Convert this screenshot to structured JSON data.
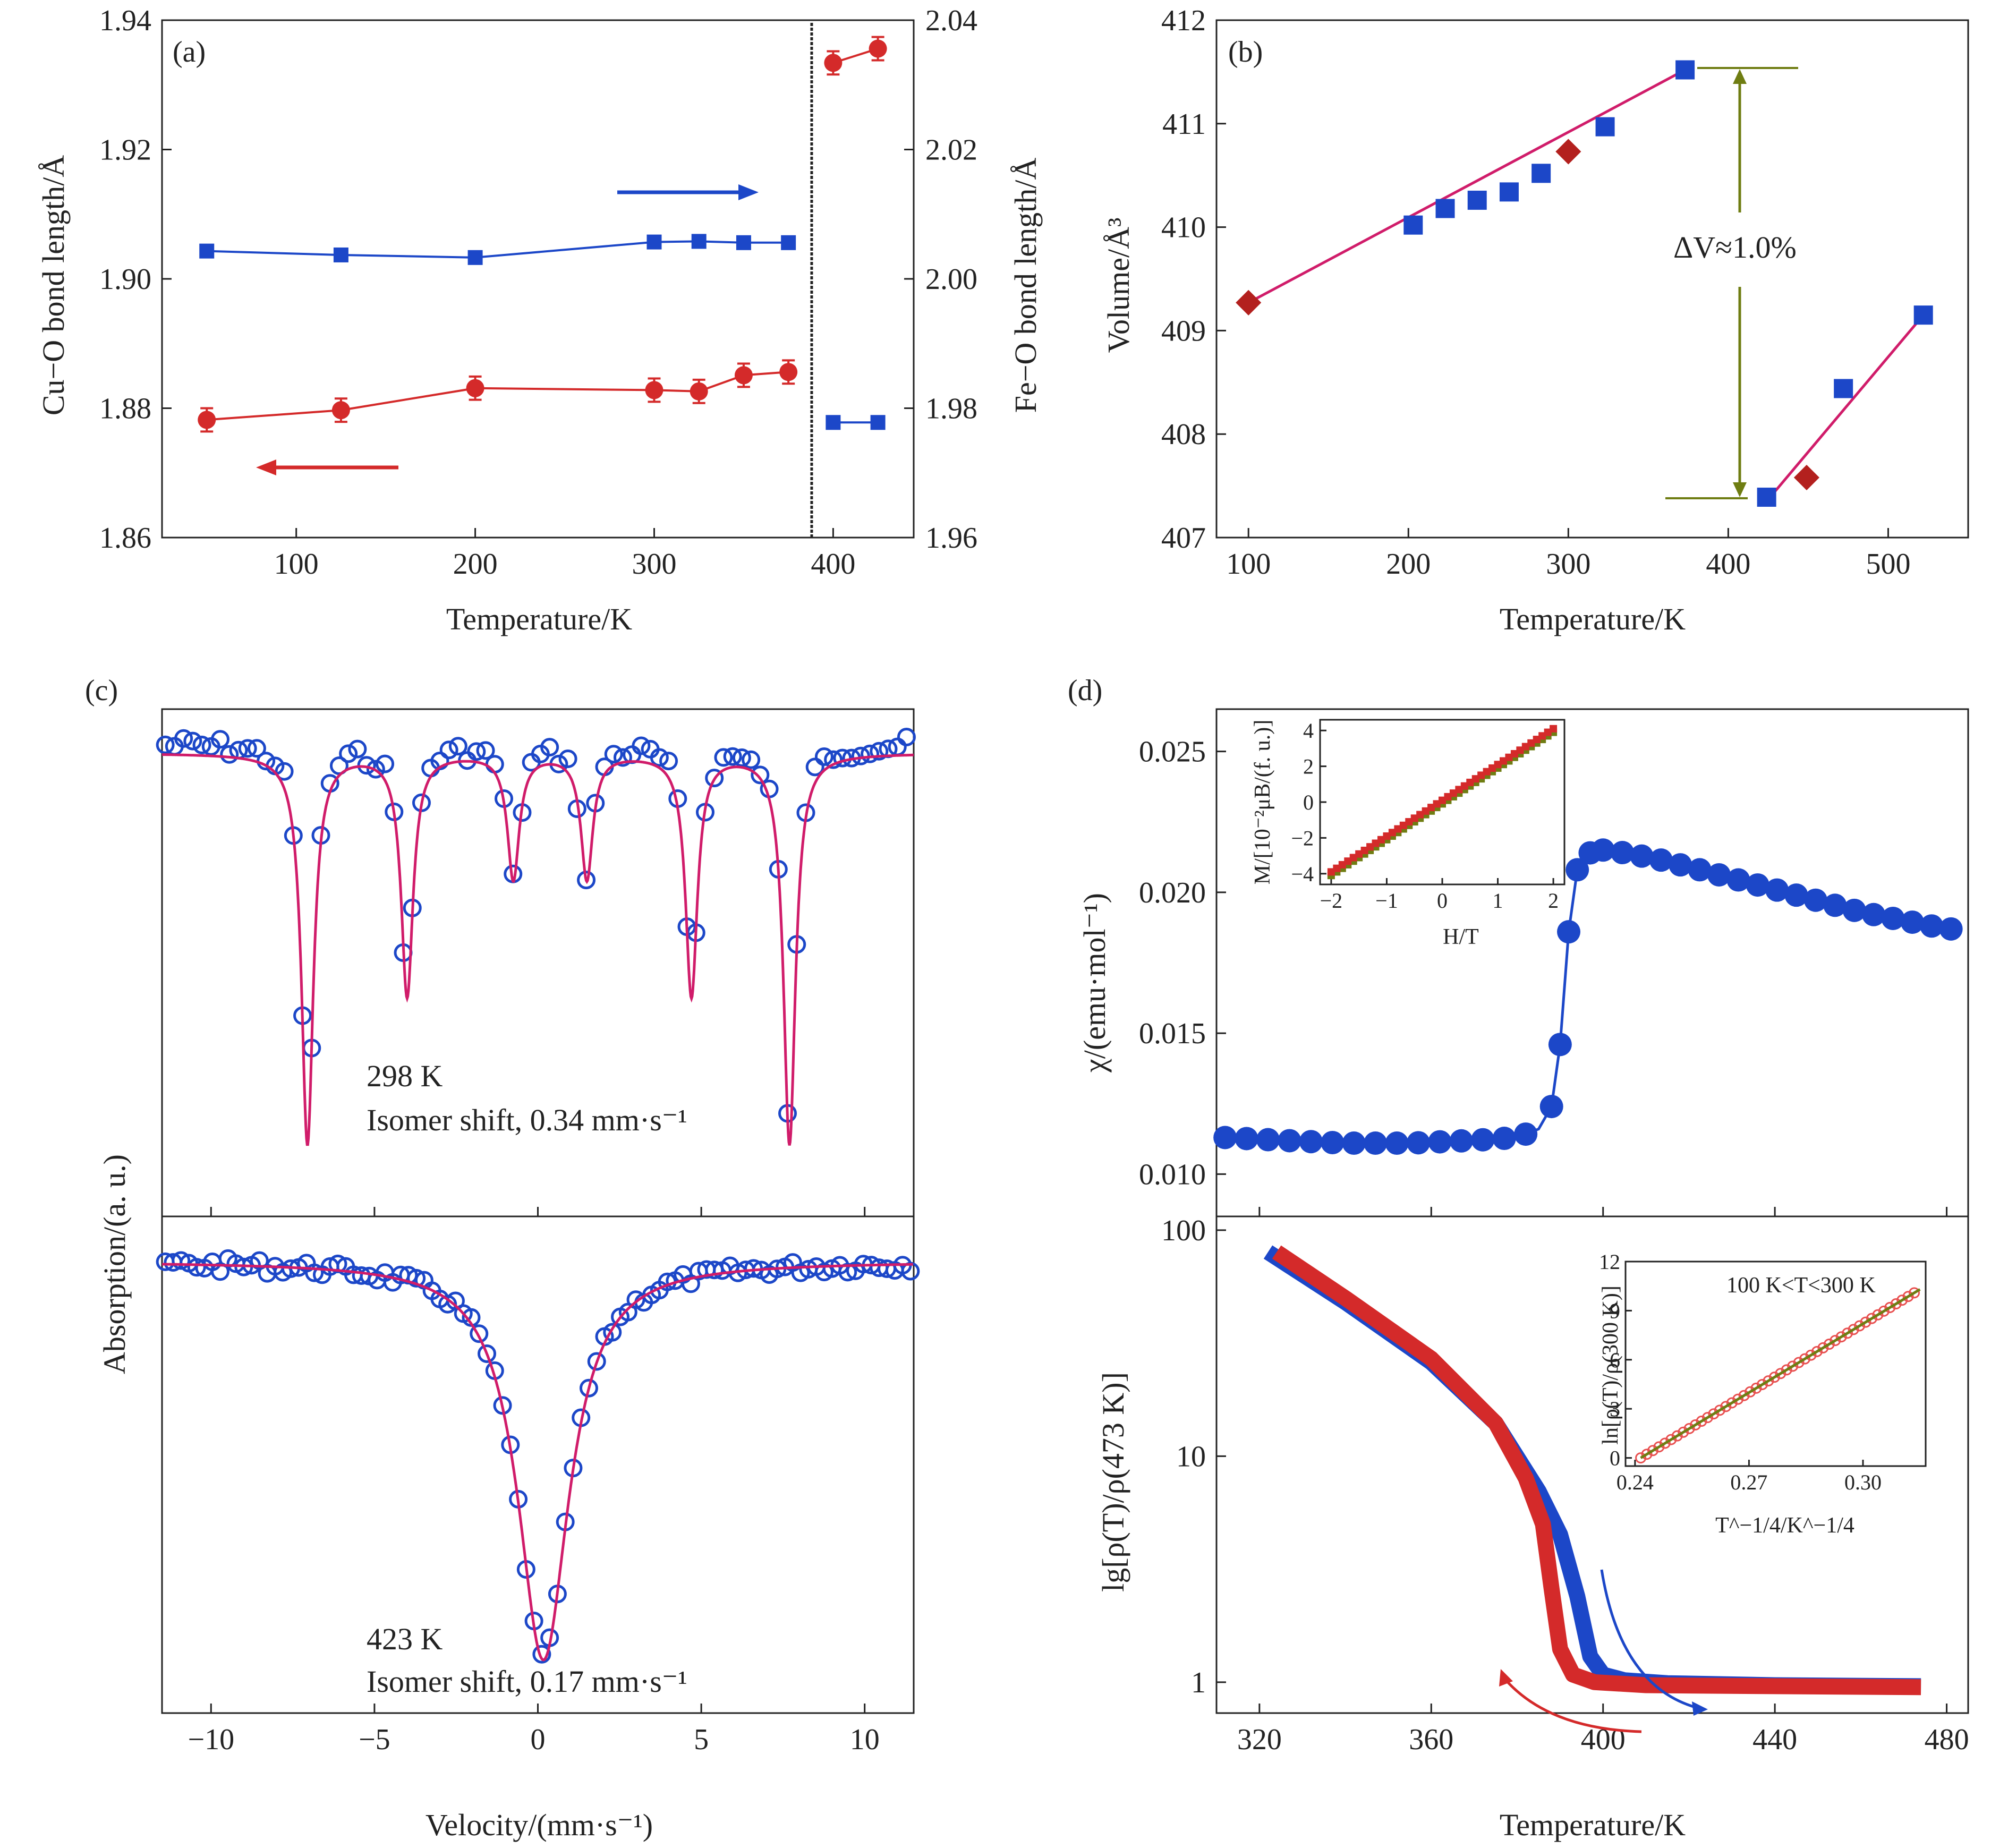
{
  "figure": {
    "panels": [
      "(a)",
      "(b)",
      "(c)",
      "(d)"
    ],
    "colors": {
      "red": "#d42a2a",
      "blue": "#1c47c8",
      "magenta": "#d01c6a",
      "olive": "#6f7d12",
      "frame": "#222222"
    }
  },
  "chart_data": [
    {
      "id": "a",
      "panel": "(a)",
      "type": "scatter",
      "xlabel": "Temperature/K",
      "ylabel": "Cu−O bond length/Å",
      "y2label": "Fe−O bond length/Å",
      "xlim": [
        25,
        445
      ],
      "ylim": [
        1.86,
        1.94
      ],
      "y2lim": [
        1.96,
        2.04
      ],
      "xticks": [
        "100",
        "200",
        "300",
        "400"
      ],
      "yticks": [
        "1.86",
        "1.88",
        "1.90",
        "1.92",
        "1.94"
      ],
      "y2ticks": [
        "1.96",
        "1.98",
        "2.00",
        "2.02",
        "2.04"
      ],
      "phase_boundary_x": 388,
      "series": [
        {
          "axis": "left",
          "color": "#d42a2a",
          "marker": "circle",
          "segments": [
            {
              "x": [
                50,
                125,
                200,
                300,
                325,
                350,
                375
              ],
              "y": [
                1.8782,
                1.8797,
                1.8831,
                1.8828,
                1.8826,
                1.8851,
                1.8856
              ],
              "err": [
                0.0018,
                0.0018,
                0.0018,
                0.0018,
                0.0018,
                0.0018,
                0.0018
              ]
            },
            {
              "x": [
                400,
                425
              ],
              "y": [
                1.9334,
                1.9356
              ],
              "err": [
                0.0018,
                0.0018
              ]
            }
          ]
        },
        {
          "axis": "right",
          "color": "#1c47c8",
          "marker": "square",
          "segments": [
            {
              "x": [
                50,
                125,
                200,
                300,
                325,
                350,
                375
              ],
              "y": [
                2.0043,
                2.0037,
                2.0033,
                2.0057,
                2.0058,
                2.0056,
                2.0056
              ],
              "err": [
                0.0006,
                0.0006,
                0.0006,
                0.0006,
                0.0006,
                0.0006,
                0.0006
              ]
            },
            {
              "x": [
                400,
                425
              ],
              "y": [
                1.9778,
                1.9778
              ],
              "err": [
                0.0006,
                0.0006
              ]
            }
          ]
        }
      ]
    },
    {
      "id": "b",
      "panel": "(b)",
      "type": "scatter",
      "xlabel": "Temperature/K",
      "ylabel": "Volume/Å³",
      "xlim": [
        80,
        550
      ],
      "ylim": [
        407,
        412
      ],
      "xticks": [
        "100",
        "200",
        "300",
        "400",
        "500"
      ],
      "yticks": [
        "407",
        "408",
        "409",
        "410",
        "411",
        "412"
      ],
      "squares": {
        "color": "#1c47c8",
        "x": [
          203,
          223,
          243,
          263,
          283,
          323,
          373,
          424,
          472,
          522
        ],
        "y": [
          410.02,
          410.18,
          410.26,
          410.34,
          410.52,
          410.97,
          411.52,
          407.39,
          408.44,
          409.15
        ]
      },
      "diamonds": {
        "color": "#b3201e",
        "x": [
          100,
          300,
          449
        ],
        "y": [
          409.27,
          410.73,
          407.58
        ]
      },
      "fit_lines": [
        {
          "color": "#d01c6a",
          "x": [
            100,
            373
          ],
          "y": [
            409.27,
            411.52
          ]
        },
        {
          "color": "#d01c6a",
          "x": [
            424,
            522
          ],
          "y": [
            407.35,
            409.15
          ]
        }
      ],
      "annotation": "ΔV≈1.0%",
      "annotation_color": "#6f7d12"
    },
    {
      "id": "c",
      "panel": "(c)",
      "type": "line",
      "xlabel": "Velocity/(mm·s⁻¹)",
      "ylabel": "Absorption/(a. u.)",
      "xlim": [
        -11.5,
        11.5
      ],
      "xticks": [
        "−10",
        "−5",
        "0",
        "5",
        "10"
      ],
      "subplots": [
        {
          "label": "298 K",
          "note": "Isomer shift, 0.34 mm·s⁻¹",
          "sextet_lines_x": [
            -7.05,
            -4.0,
            -0.75,
            1.5,
            4.7,
            7.7
          ],
          "line_depths": [
            1.0,
            0.62,
            0.32,
            0.32,
            0.62,
            1.0
          ],
          "fit_color": "#d01c6a",
          "data_color": "#1c47c8"
        },
        {
          "label": "423 K",
          "note": "Isomer shift, 0.17 mm·s⁻¹",
          "singlet_x": 0.17,
          "fit_color": "#d01c6a",
          "data_color": "#1c47c8"
        }
      ]
    },
    {
      "id": "d",
      "panel": "(d)",
      "type": "line",
      "xlabel": "Temperature/K",
      "xlim": [
        310,
        485
      ],
      "xticks": [
        "320",
        "360",
        "400",
        "440",
        "480"
      ],
      "top": {
        "ylabel": "χ/(emu·mol⁻¹)",
        "ylim": [
          0.0085,
          0.0265
        ],
        "yticks": [
          "0.010",
          "0.015",
          "0.020",
          "0.025"
        ],
        "x": [
          312,
          325,
          340,
          355,
          370,
          380,
          385,
          388,
          390,
          392,
          394,
          396,
          398,
          400,
          405,
          412,
          420,
          430,
          440,
          450,
          460,
          470,
          480
        ],
        "y": [
          0.0113,
          0.0112,
          0.0111,
          0.0111,
          0.0112,
          0.0113,
          0.0116,
          0.0124,
          0.0146,
          0.0186,
          0.0208,
          0.0213,
          0.0215,
          0.0215,
          0.0214,
          0.0212,
          0.0209,
          0.0205,
          0.0201,
          0.0197,
          0.0193,
          0.019,
          0.0187
        ],
        "color": "#1c47c8",
        "inset": {
          "xlabel": "H/T",
          "ylabel": "M/[10⁻²μB/(f. u.)]",
          "xlim": [
            -2.2,
            2.2
          ],
          "ylim": [
            -4.6,
            4.6
          ],
          "xticks": [
            "−2",
            "−1",
            "0",
            "1",
            "2"
          ],
          "yticks": [
            "−4",
            "−2",
            "0",
            "2",
            "4"
          ],
          "slope": 2.0,
          "colors": [
            "#d42a2a",
            "#6f7d12"
          ]
        }
      },
      "bottom": {
        "ylabel": "lg[ρ(T)/ρ(473 K)]",
        "ylim_log": [
          0.73,
          115
        ],
        "yticks": [
          "1",
          "10",
          "100"
        ],
        "heating": {
          "color": "#1c47c8",
          "x": [
            322,
            340,
            360,
            375,
            385,
            390,
            394,
            397,
            400,
            405,
            415,
            440,
            474
          ],
          "y": [
            80,
            48,
            26,
            14,
            7.0,
            4.5,
            2.4,
            1.3,
            1.08,
            1.02,
            0.99,
            0.97,
            0.96
          ]
        },
        "cooling": {
          "color": "#d42a2a",
          "x": [
            324,
            340,
            360,
            375,
            382,
            386,
            388,
            390,
            393,
            398,
            410,
            440,
            474
          ],
          "y": [
            80,
            50,
            27,
            14,
            8.0,
            5.0,
            2.6,
            1.4,
            1.08,
            1.0,
            0.97,
            0.96,
            0.95
          ]
        },
        "inset": {
          "title": "100 K<T<300 K",
          "xlabel": "T^−1/4/K^−1/4",
          "ylabel": "ln[ρ(T)/ρ(300 K)]",
          "xlim": [
            0.2375,
            0.3165
          ],
          "ylim": [
            -0.5,
            12
          ],
          "xticks": [
            "0.24",
            "0.27",
            "0.30"
          ],
          "yticks": [
            "0",
            "3",
            "6",
            "9",
            "12"
          ],
          "fit": {
            "x": [
              0.2415,
              0.315
            ],
            "y": [
              0.0,
              10.3
            ]
          },
          "colors": [
            "#e85050",
            "#6f7d12"
          ]
        }
      }
    }
  ]
}
